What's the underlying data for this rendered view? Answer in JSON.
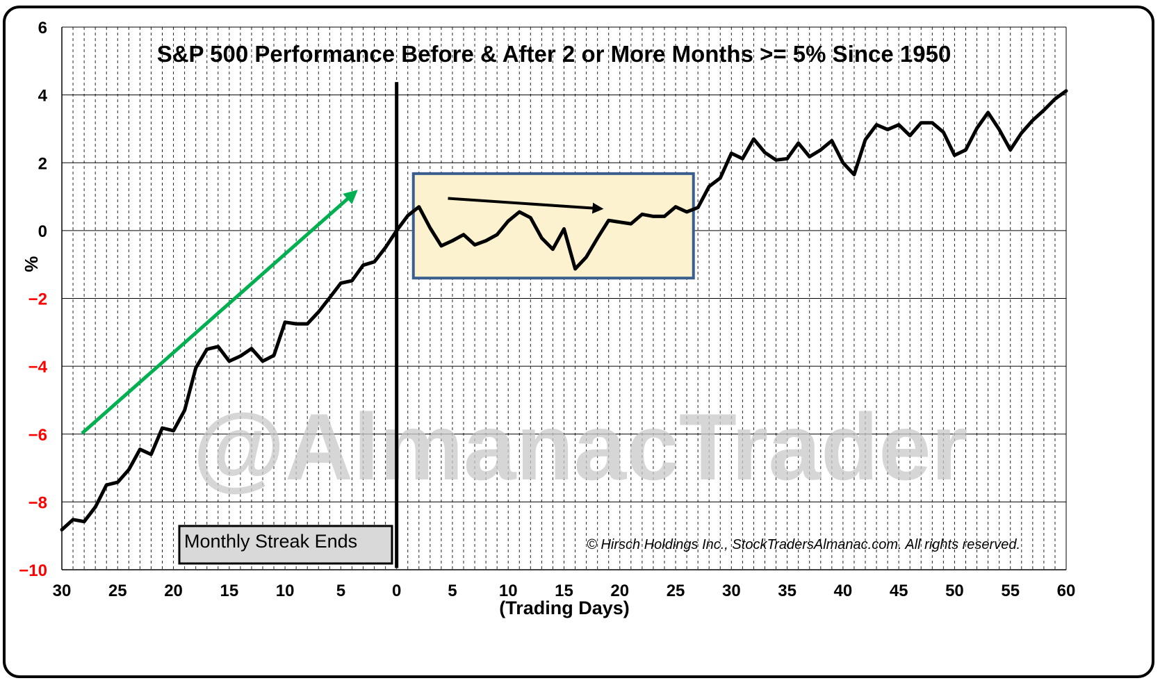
{
  "chart_data": {
    "type": "line",
    "title": "S&P 500 Performance Before & After 2 or More Months >= 5% Since 1950",
    "xlabel": "(Trading Days)",
    "ylabel": "%",
    "xlim": [
      -30,
      60
    ],
    "ylim": [
      -10,
      6
    ],
    "x_ticks": [
      -30,
      -25,
      -20,
      -15,
      -10,
      -5,
      0,
      5,
      10,
      15,
      20,
      25,
      30,
      35,
      40,
      45,
      50,
      55,
      60
    ],
    "x_tick_labels": [
      "30",
      "25",
      "20",
      "15",
      "10",
      "5",
      "0",
      "5",
      "10",
      "15",
      "20",
      "25",
      "30",
      "35",
      "40",
      "45",
      "50",
      "55",
      "60"
    ],
    "y_ticks": [
      -10,
      -8,
      -6,
      -4,
      -2,
      0,
      2,
      4,
      6
    ],
    "y_tick_labels": [
      "−10",
      "−8",
      "−6",
      "−4",
      "−2",
      "0",
      "2",
      "4",
      "6"
    ],
    "negative_tick_color": "#ff0000",
    "line_color": "#000000",
    "grid": true,
    "series": [
      {
        "x": [
          -30,
          -29,
          -28,
          -27,
          -26,
          -25,
          -24,
          -23,
          -22,
          -21,
          -20,
          -19,
          -18,
          -17,
          -16,
          -15,
          -14,
          -13,
          -12,
          -11,
          -10,
          -9,
          -8,
          -7,
          -6,
          -5,
          -4,
          -3,
          -2,
          -1,
          0,
          1,
          2,
          3,
          4,
          5,
          6,
          7,
          8,
          9,
          10,
          11,
          12,
          13,
          14,
          15,
          16,
          17,
          18,
          19,
          20,
          21,
          22,
          23,
          24,
          25,
          26,
          27,
          28,
          29,
          30,
          31,
          32,
          33,
          34,
          35,
          36,
          37,
          38,
          39,
          40,
          41,
          42,
          43,
          44,
          45,
          46,
          47,
          48,
          49,
          50,
          51,
          52,
          53,
          54,
          55,
          56,
          57,
          58,
          59,
          60
        ],
        "y": [
          -8.82,
          -8.52,
          -8.58,
          -8.15,
          -7.5,
          -7.42,
          -7.05,
          -6.45,
          -6.6,
          -5.82,
          -5.9,
          -5.3,
          -4.05,
          -3.5,
          -3.42,
          -3.85,
          -3.7,
          -3.48,
          -3.85,
          -3.68,
          -2.7,
          -2.75,
          -2.75,
          -2.4,
          -1.98,
          -1.55,
          -1.48,
          -1.02,
          -0.92,
          -0.5,
          0.0,
          0.44,
          0.7,
          0.08,
          -0.45,
          -0.3,
          -0.12,
          -0.42,
          -0.3,
          -0.12,
          0.28,
          0.55,
          0.38,
          -0.22,
          -0.55,
          0.05,
          -1.13,
          -0.78,
          -0.22,
          0.3,
          0.25,
          0.2,
          0.48,
          0.42,
          0.42,
          0.7,
          0.55,
          0.68,
          1.3,
          1.55,
          2.28,
          2.12,
          2.7,
          2.3,
          2.08,
          2.12,
          2.58,
          2.18,
          2.38,
          2.65,
          2.0,
          1.65,
          2.68,
          3.12,
          2.98,
          3.12,
          2.8,
          3.18,
          3.18,
          2.9,
          2.22,
          2.38,
          3.02,
          3.48,
          2.98,
          2.38,
          2.88,
          3.25,
          3.55,
          3.88,
          4.12
        ]
      }
    ],
    "annotations": {
      "streak_label": "Monthly Streak Ends",
      "copyright": "© Hirsch Holdings Inc., StockTradersAlmanac.com. All rights reserved.",
      "watermark": "@AlmanacTrader",
      "green_arrow": {
        "from": [
          -28.2,
          -5.98
        ],
        "to": [
          -3.9,
          1.08
        ],
        "color": "#00b050"
      },
      "black_arrow": {
        "from": [
          4.6,
          0.95
        ],
        "to": [
          18.1,
          0.65
        ],
        "color": "#000000"
      },
      "highlight_box": {
        "x_range": [
          1.5,
          26.6
        ],
        "y_range": [
          -1.4,
          1.68
        ],
        "fill": "#fdf2d0",
        "border": "#3a5f8f"
      },
      "divider_line": {
        "x": 0,
        "y_top": 4.38,
        "y_bottom": -9.95
      }
    }
  }
}
